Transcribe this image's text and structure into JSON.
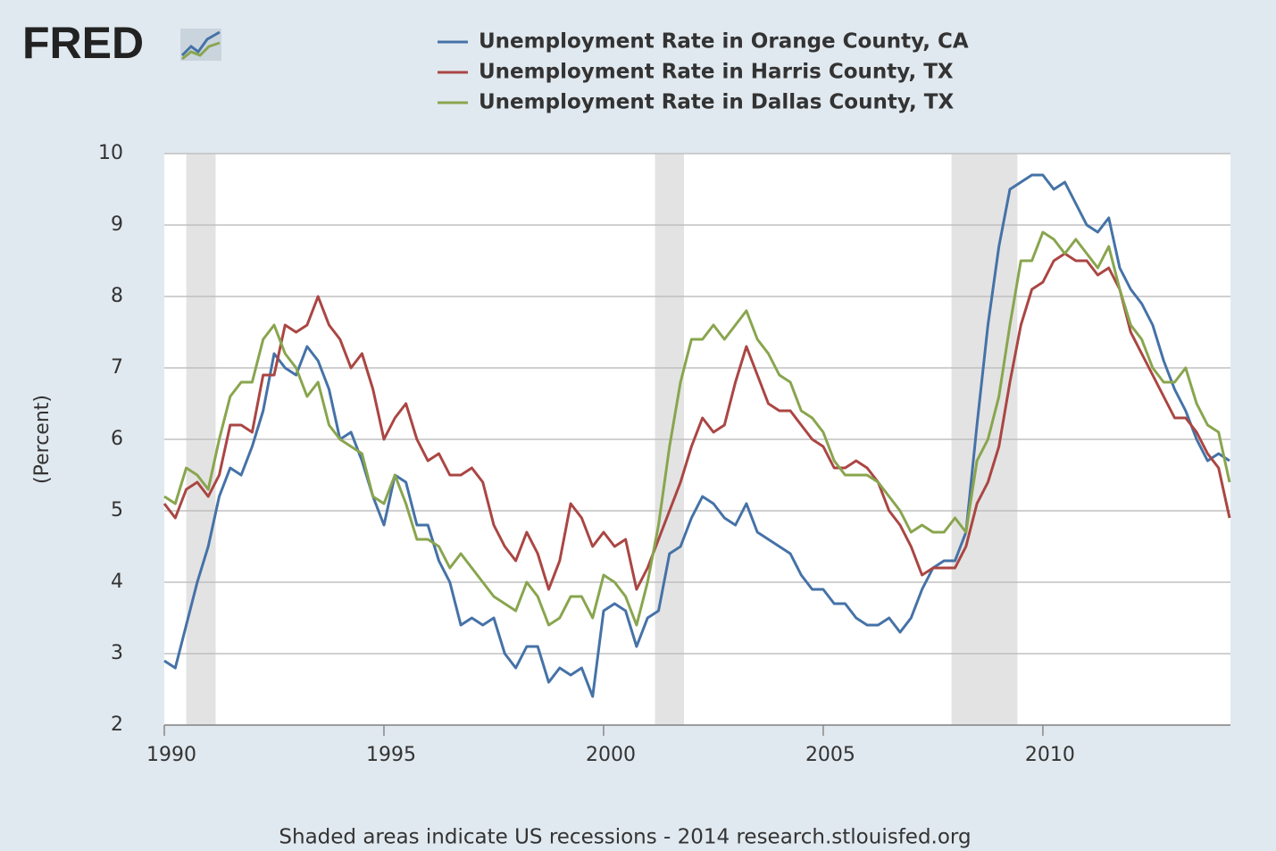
{
  "chart_data": {
    "type": "line",
    "logo": "FRED",
    "ylabel": "(Percent)",
    "footer": "Shaded areas indicate US recessions - 2014 research.stlouisfed.org",
    "legend": "top",
    "grid": true,
    "xlim": [
      1990,
      2014.27
    ],
    "ylim": [
      2,
      10
    ],
    "xticks": [
      1990,
      1995,
      2000,
      2005,
      2010
    ],
    "yticks": [
      2,
      3,
      4,
      5,
      6,
      7,
      8,
      9,
      10
    ],
    "recessions": [
      [
        1990.5,
        1991.17
      ],
      [
        2001.17,
        2001.83
      ],
      [
        2007.92,
        2009.42
      ]
    ],
    "x": [
      1990,
      1990.25,
      1990.5,
      1990.75,
      1991,
      1991.25,
      1991.5,
      1991.75,
      1992,
      1992.25,
      1992.5,
      1992.75,
      1993,
      1993.25,
      1993.5,
      1993.75,
      1994,
      1994.25,
      1994.5,
      1994.75,
      1995,
      1995.25,
      1995.5,
      1995.75,
      1996,
      1996.25,
      1996.5,
      1996.75,
      1997,
      1997.25,
      1997.5,
      1997.75,
      1998,
      1998.25,
      1998.5,
      1998.75,
      1999,
      1999.25,
      1999.5,
      1999.75,
      2000,
      2000.25,
      2000.5,
      2000.75,
      2001,
      2001.25,
      2001.5,
      2001.75,
      2002,
      2002.25,
      2002.5,
      2002.75,
      2003,
      2003.25,
      2003.5,
      2003.75,
      2004,
      2004.25,
      2004.5,
      2004.75,
      2005,
      2005.25,
      2005.5,
      2005.75,
      2006,
      2006.25,
      2006.5,
      2006.75,
      2007,
      2007.25,
      2007.5,
      2007.75,
      2008,
      2008.25,
      2008.5,
      2008.75,
      2009,
      2009.25,
      2009.5,
      2009.75,
      2010,
      2010.25,
      2010.5,
      2010.75,
      2011,
      2011.25,
      2011.5,
      2011.75,
      2012,
      2012.25,
      2012.5,
      2012.75,
      2013,
      2013.25,
      2013.5,
      2013.75,
      2014,
      2014.25
    ],
    "series": [
      {
        "name": "Unemployment Rate in Orange County, CA",
        "color": "#4572a7",
        "values": [
          2.9,
          2.8,
          3.4,
          4.0,
          4.5,
          5.2,
          5.6,
          5.5,
          5.9,
          6.4,
          7.2,
          7.0,
          6.9,
          7.3,
          7.1,
          6.7,
          6.0,
          6.1,
          5.7,
          5.2,
          4.8,
          5.5,
          5.4,
          4.8,
          4.8,
          4.3,
          4.0,
          3.4,
          3.5,
          3.4,
          3.5,
          3.0,
          2.8,
          3.1,
          3.1,
          2.6,
          2.8,
          2.7,
          2.8,
          2.4,
          3.6,
          3.7,
          3.6,
          3.1,
          3.5,
          3.6,
          4.4,
          4.5,
          4.9,
          5.2,
          5.1,
          4.9,
          4.8,
          5.1,
          4.7,
          4.6,
          4.5,
          4.4,
          4.1,
          3.9,
          3.9,
          3.7,
          3.7,
          3.5,
          3.4,
          3.4,
          3.5,
          3.3,
          3.5,
          3.9,
          4.2,
          4.3,
          4.3,
          4.7,
          6.2,
          7.6,
          8.7,
          9.5,
          9.6,
          9.7,
          9.7,
          9.5,
          9.6,
          9.3,
          9.0,
          8.9,
          9.1,
          8.4,
          8.1,
          7.9,
          7.6,
          7.1,
          6.7,
          6.4,
          6.0,
          5.7,
          5.8,
          5.7
        ]
      },
      {
        "name": "Unemployment Rate in Harris County, TX",
        "color": "#aa4643",
        "values": [
          5.1,
          4.9,
          5.3,
          5.4,
          5.2,
          5.5,
          6.2,
          6.2,
          6.1,
          6.9,
          6.9,
          7.6,
          7.5,
          7.6,
          8.0,
          7.6,
          7.4,
          7.0,
          7.2,
          6.7,
          6.0,
          6.3,
          6.5,
          6.0,
          5.7,
          5.8,
          5.5,
          5.5,
          5.6,
          5.4,
          4.8,
          4.5,
          4.3,
          4.7,
          4.4,
          3.9,
          4.3,
          5.1,
          4.9,
          4.5,
          4.7,
          4.5,
          4.6,
          3.9,
          4.2,
          4.6,
          5.0,
          5.4,
          5.9,
          6.3,
          6.1,
          6.2,
          6.8,
          7.3,
          6.9,
          6.5,
          6.4,
          6.4,
          6.2,
          6.0,
          5.9,
          5.6,
          5.6,
          5.7,
          5.6,
          5.4,
          5.0,
          4.8,
          4.5,
          4.1,
          4.2,
          4.2,
          4.2,
          4.5,
          5.1,
          5.4,
          5.9,
          6.8,
          7.6,
          8.1,
          8.2,
          8.5,
          8.6,
          8.5,
          8.5,
          8.3,
          8.4,
          8.1,
          7.5,
          7.2,
          6.9,
          6.6,
          6.3,
          6.3,
          6.1,
          5.8,
          5.6,
          4.9
        ]
      },
      {
        "name": "Unemployment Rate in Dallas County, TX",
        "color": "#89a54e",
        "values": [
          5.2,
          5.1,
          5.6,
          5.5,
          5.3,
          6.0,
          6.6,
          6.8,
          6.8,
          7.4,
          7.6,
          7.2,
          7.0,
          6.6,
          6.8,
          6.2,
          6.0,
          5.9,
          5.8,
          5.2,
          5.1,
          5.5,
          5.1,
          4.6,
          4.6,
          4.5,
          4.2,
          4.4,
          4.2,
          4.0,
          3.8,
          3.7,
          3.6,
          4.0,
          3.8,
          3.4,
          3.5,
          3.8,
          3.8,
          3.5,
          4.1,
          4.0,
          3.8,
          3.4,
          4.0,
          4.8,
          5.9,
          6.8,
          7.4,
          7.4,
          7.6,
          7.4,
          7.6,
          7.8,
          7.4,
          7.2,
          6.9,
          6.8,
          6.4,
          6.3,
          6.1,
          5.7,
          5.5,
          5.5,
          5.5,
          5.4,
          5.2,
          5.0,
          4.7,
          4.8,
          4.7,
          4.7,
          4.9,
          4.7,
          5.7,
          6.0,
          6.6,
          7.6,
          8.5,
          8.5,
          8.9,
          8.8,
          8.6,
          8.8,
          8.6,
          8.4,
          8.7,
          8.1,
          7.6,
          7.4,
          7.0,
          6.8,
          6.8,
          7.0,
          6.5,
          6.2,
          6.1,
          5.4
        ]
      }
    ]
  }
}
